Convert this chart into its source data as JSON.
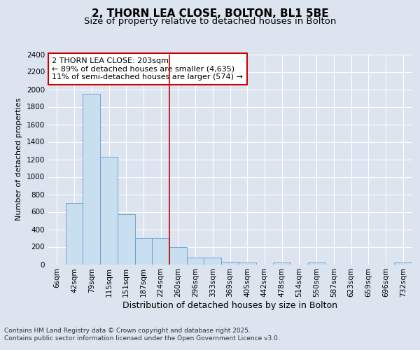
{
  "title_line1": "2, THORN LEA CLOSE, BOLTON, BL1 5BE",
  "title_line2": "Size of property relative to detached houses in Bolton",
  "xlabel": "Distribution of detached houses by size in Bolton",
  "ylabel": "Number of detached properties",
  "categories": [
    "6sqm",
    "42sqm",
    "79sqm",
    "115sqm",
    "151sqm",
    "187sqm",
    "224sqm",
    "260sqm",
    "296sqm",
    "333sqm",
    "369sqm",
    "405sqm",
    "442sqm",
    "478sqm",
    "514sqm",
    "550sqm",
    "587sqm",
    "623sqm",
    "659sqm",
    "696sqm",
    "732sqm"
  ],
  "values": [
    0,
    700,
    1950,
    1230,
    575,
    300,
    300,
    200,
    75,
    75,
    30,
    20,
    0,
    20,
    0,
    20,
    0,
    0,
    0,
    0,
    20
  ],
  "bar_color": "#c8dff0",
  "bar_edge_color": "#6699cc",
  "annotation_text": "2 THORN LEA CLOSE: 203sqm\n← 89% of detached houses are smaller (4,635)\n11% of semi-detached houses are larger (574) →",
  "annotation_box_color": "#ffffff",
  "annotation_box_edge_color": "#cc0000",
  "vline_x": 6.5,
  "vline_color": "#cc0000",
  "ylim": [
    0,
    2400
  ],
  "yticks": [
    0,
    200,
    400,
    600,
    800,
    1000,
    1200,
    1400,
    1600,
    1800,
    2000,
    2200,
    2400
  ],
  "background_color": "#dce4f0",
  "plot_background_color": "#dce4f0",
  "footer_text": "Contains HM Land Registry data © Crown copyright and database right 2025.\nContains public sector information licensed under the Open Government Licence v3.0.",
  "title_fontsize": 11,
  "subtitle_fontsize": 9.5,
  "xlabel_fontsize": 9,
  "ylabel_fontsize": 8,
  "tick_fontsize": 7.5,
  "annotation_fontsize": 8,
  "footer_fontsize": 6.5
}
